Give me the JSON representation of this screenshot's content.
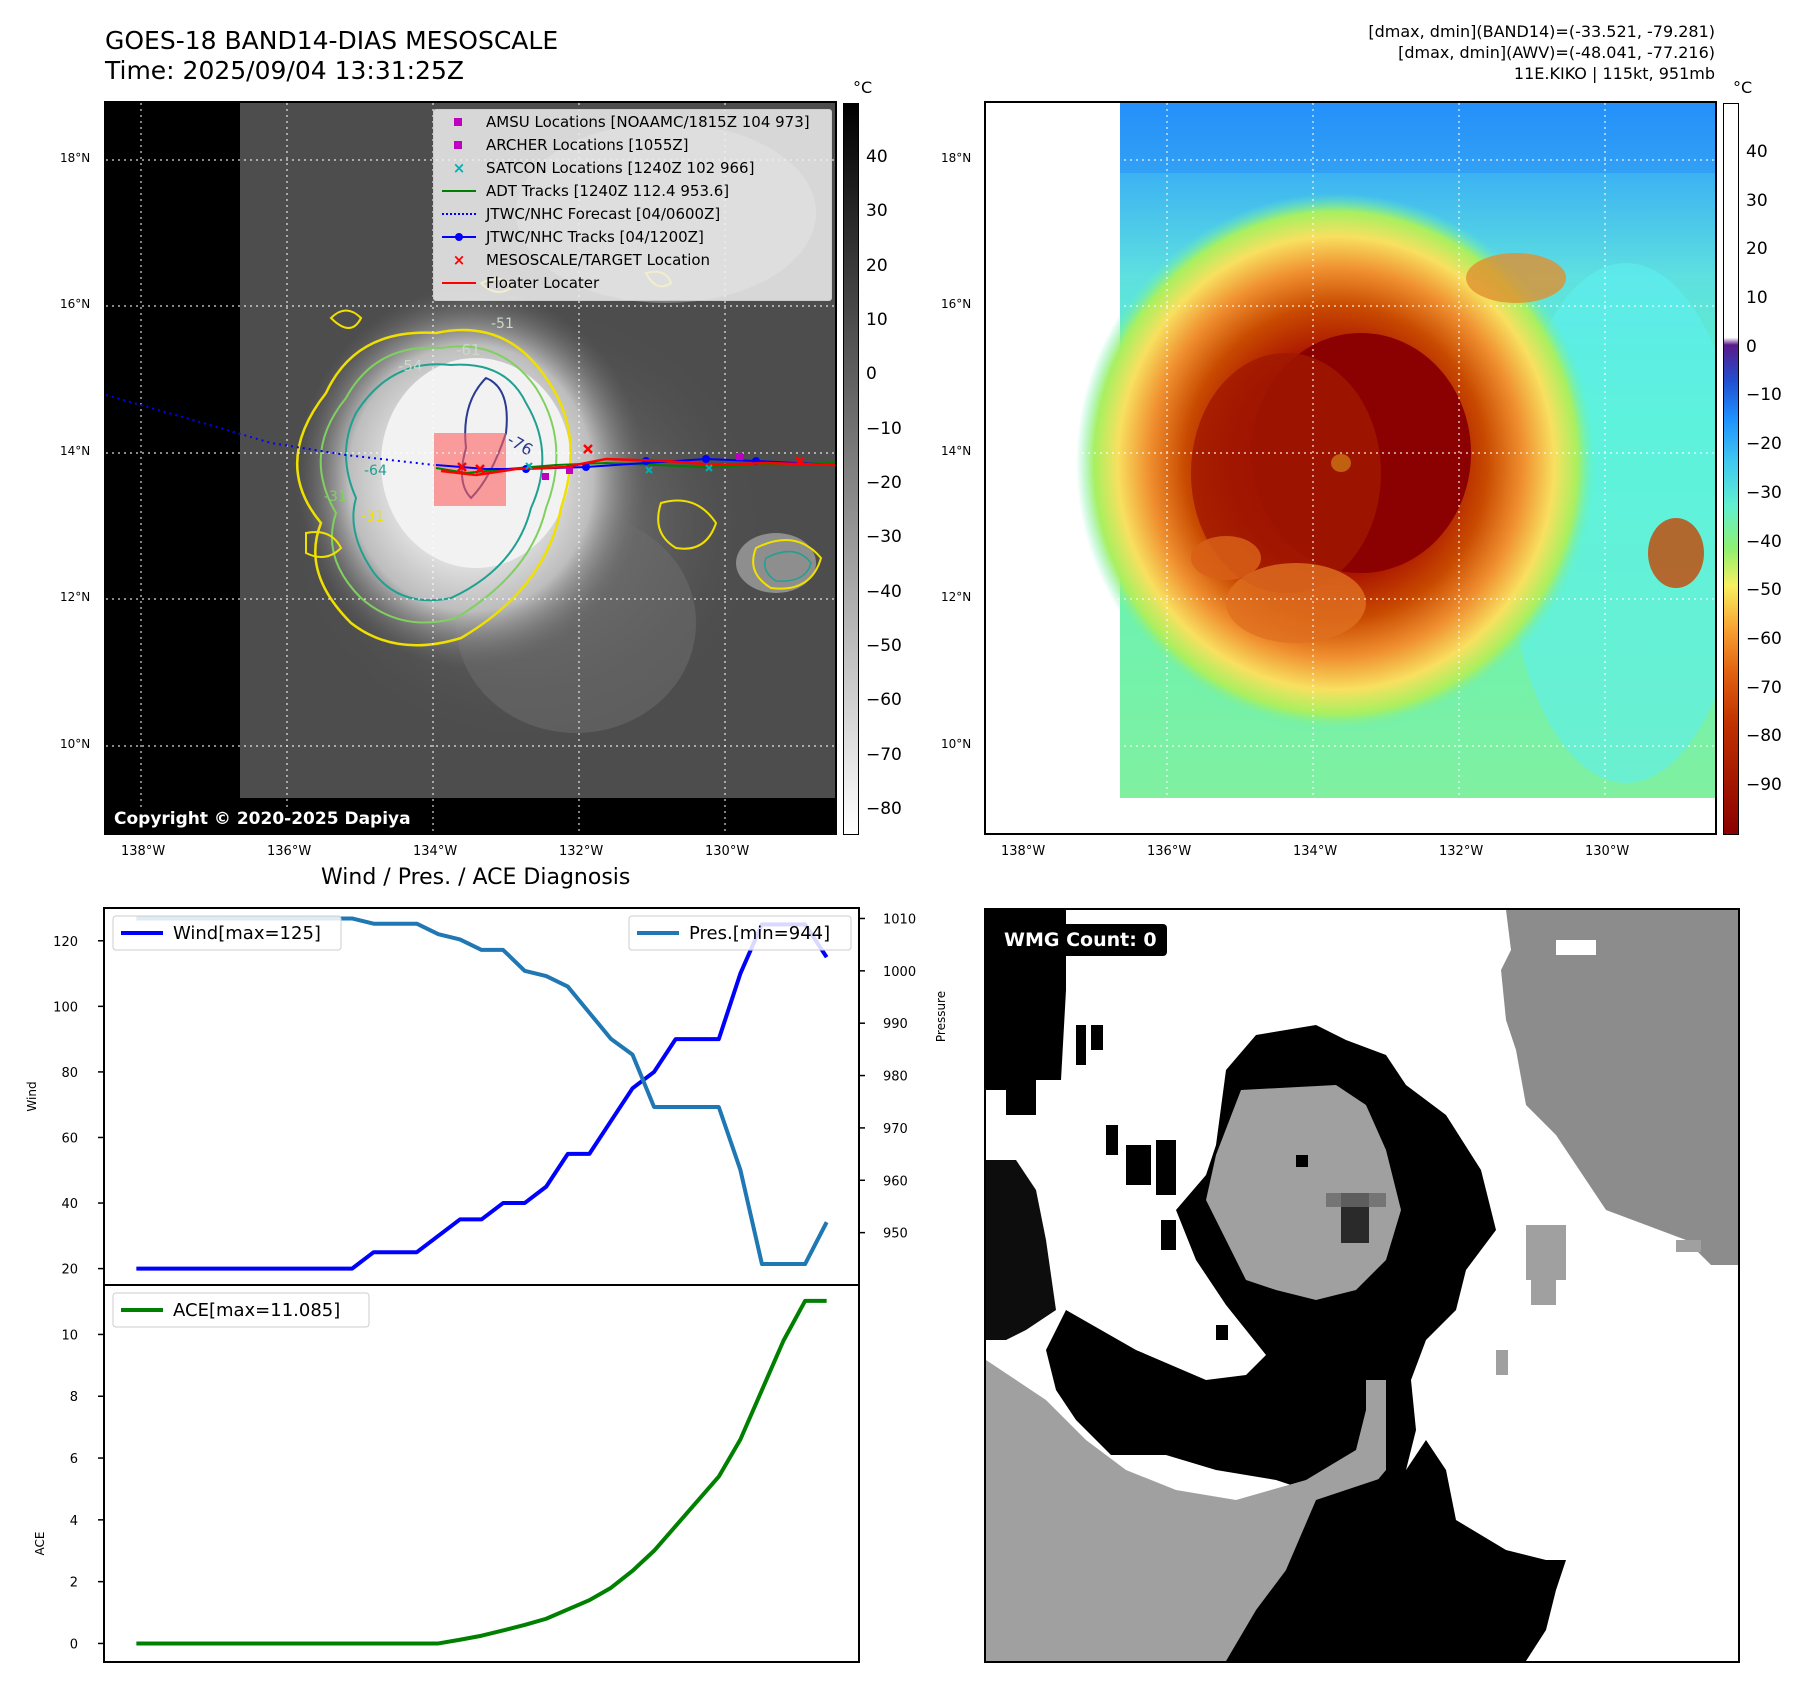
{
  "header": {
    "title_line1": "GOES-18 BAND14-DIAS MESOSCALE",
    "title_line2": "Time: 2025/09/04 13:31:25Z",
    "info_line1": "[dmax, dmin](BAND14)=(-33.521, -79.281)",
    "info_line2": "[dmax, dmin](AWV)=(-48.041, -77.216)",
    "info_line3": "11E.KIKO | 115kt, 951mb"
  },
  "map": {
    "lat_labels": [
      "18°N",
      "16°N",
      "14°N",
      "12°N",
      "10°N"
    ],
    "lon_labels": [
      "138°W",
      "136°W",
      "134°W",
      "132°W",
      "130°W"
    ],
    "contour_labels": [
      "-54",
      "-61",
      "-76",
      "-64",
      "-31",
      "-31",
      "-51"
    ],
    "copyright": "Copyright © 2020-2025 Dapiya",
    "colorbar_unit": "°C",
    "colorbar_left_ticks": [
      "40",
      "30",
      "20",
      "10",
      "0",
      "−10",
      "−20",
      "−30",
      "−40",
      "−50",
      "−60",
      "−70",
      "−80"
    ],
    "colorbar_right_ticks": [
      "40",
      "30",
      "20",
      "10",
      "0",
      "−10",
      "−20",
      "−30",
      "−40",
      "−50",
      "−60",
      "−70",
      "−80",
      "−90"
    ]
  },
  "legend": {
    "items": [
      {
        "label": "AMSU Locations [NOAAMC/1815Z 104 973]",
        "symbol": "square",
        "color": "#c000c0"
      },
      {
        "label": "ARCHER Locations [1055Z]",
        "symbol": "square",
        "color": "#c000c0"
      },
      {
        "label": "SATCON Locations [1240Z 102 966]",
        "symbol": "x",
        "color": "#00b0b0"
      },
      {
        "label": "ADT Tracks [1240Z 112.4 953.6]",
        "symbol": "line",
        "color": "#008000"
      },
      {
        "label": "JTWC/NHC Forecast [04/0600Z]",
        "symbol": "dotted",
        "color": "#0000ff"
      },
      {
        "label": "JTWC/NHC Tracks [04/1200Z]",
        "symbol": "line-dot",
        "color": "#0000ff"
      },
      {
        "label": "MESOSCALE/TARGET Location",
        "symbol": "x",
        "color": "#ff0000"
      },
      {
        "label": "Floater Locater",
        "symbol": "line",
        "color": "#ff0000"
      }
    ]
  },
  "chart_data": [
    {
      "type": "line",
      "title": "Wind / Pres. / ACE Diagnosis",
      "ylabel": "Wind",
      "y2label": "Pressure",
      "ylim": [
        15,
        130
      ],
      "y2lim": [
        940,
        1012
      ],
      "yticks": [
        20,
        40,
        60,
        80,
        100,
        120
      ],
      "y2ticks": [
        950,
        960,
        970,
        980,
        990,
        1000,
        1010
      ],
      "x": [
        0,
        1,
        2,
        3,
        4,
        5,
        6,
        7,
        8,
        9,
        10,
        11,
        12,
        13,
        14,
        15,
        16,
        17,
        18,
        19,
        20,
        21,
        22,
        23,
        24,
        25,
        26,
        27,
        28,
        29,
        30,
        31,
        32
      ],
      "series": [
        {
          "name": "Wind[max=125]",
          "axis": "left",
          "color": "#0000ff",
          "values": [
            20,
            20,
            20,
            20,
            20,
            20,
            20,
            20,
            20,
            20,
            20,
            25,
            25,
            25,
            30,
            35,
            35,
            40,
            40,
            45,
            55,
            55,
            65,
            75,
            80,
            90,
            90,
            90,
            110,
            125,
            125,
            125,
            115
          ]
        },
        {
          "name": "Pres.[min=944]",
          "axis": "right",
          "color": "#1f77b4",
          "values": [
            1010,
            1010,
            1010,
            1010,
            1010,
            1010,
            1010,
            1010,
            1010,
            1010,
            1010,
            1009,
            1009,
            1009,
            1007,
            1006,
            1004,
            1004,
            1000,
            999,
            997,
            992,
            987,
            984,
            974,
            974,
            974,
            974,
            962,
            944,
            944,
            944,
            952
          ]
        }
      ]
    },
    {
      "type": "line",
      "ylabel": "ACE",
      "ylim": [
        -0.6,
        11.6
      ],
      "yticks": [
        0,
        2,
        4,
        6,
        8,
        10
      ],
      "x": [
        0,
        1,
        2,
        3,
        4,
        5,
        6,
        7,
        8,
        9,
        10,
        11,
        12,
        13,
        14,
        15,
        16,
        17,
        18,
        19,
        20,
        21,
        22,
        23,
        24,
        25,
        26,
        27,
        28,
        29,
        30,
        31,
        32
      ],
      "series": [
        {
          "name": "ACE[max=11.085]",
          "color": "#008000",
          "values": [
            0,
            0,
            0,
            0,
            0,
            0,
            0,
            0,
            0,
            0,
            0,
            0,
            0,
            0,
            0,
            0.12,
            0.25,
            0.42,
            0.6,
            0.8,
            1.1,
            1.4,
            1.8,
            2.35,
            3.0,
            3.8,
            4.6,
            5.4,
            6.6,
            8.2,
            9.8,
            11.085,
            11.085
          ]
        }
      ]
    }
  ],
  "wmg": {
    "label": "WMG Count: 0"
  }
}
